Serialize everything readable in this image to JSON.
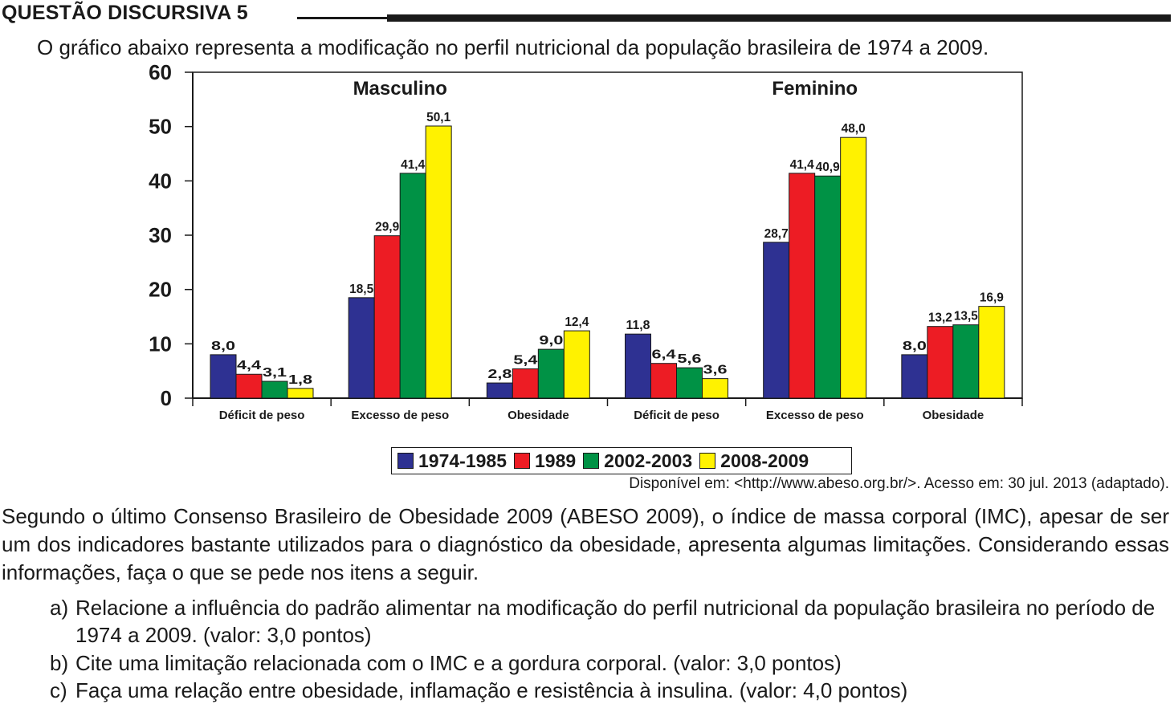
{
  "header": {
    "title": "QUESTÃO DISCURSIVA 5"
  },
  "intro": "O gráfico abaixo representa a modificação no perfil nutricional da população brasileira de 1974 a 2009.",
  "colors": {
    "series_1": "#2e3192",
    "series_2": "#ed1c24",
    "series_3": "#009245",
    "series_4": "#fff200",
    "text": "#1a1a1a"
  },
  "chart_data": {
    "type": "bar",
    "panels": [
      "Masculino",
      "Feminino"
    ],
    "categories": [
      "Déficit de peso",
      "Excesso de peso",
      "Obesidade",
      "Déficit de peso",
      "Excesso de peso",
      "Obesidade"
    ],
    "series": [
      {
        "name": "1974-1985",
        "values": [
          8.0,
          18.5,
          2.8,
          11.8,
          28.7,
          8.0
        ],
        "labels": [
          "8,0",
          "18,5",
          "2,8",
          "11,8",
          "28,7",
          "8,0"
        ]
      },
      {
        "name": "1989",
        "values": [
          4.4,
          29.9,
          5.4,
          6.4,
          41.4,
          13.2
        ],
        "labels": [
          "4,4",
          "29,9",
          "5,4",
          "6,4",
          "41,4",
          "13,2"
        ]
      },
      {
        "name": "2002-2003",
        "values": [
          3.1,
          41.4,
          9.0,
          5.6,
          40.9,
          13.5
        ],
        "labels": [
          "3,1",
          "41,4",
          "9,0",
          "5,6",
          "40,9",
          "13,5"
        ]
      },
      {
        "name": "2008-2009",
        "values": [
          1.8,
          50.1,
          12.4,
          3.6,
          48.0,
          16.9
        ],
        "labels": [
          "1,8",
          "50,1",
          "12,4",
          "3,6",
          "48,0",
          "16,9"
        ]
      }
    ],
    "y_ticks": [
      "0",
      "10",
      "20",
      "30",
      "40",
      "50",
      "60"
    ],
    "ylim": [
      0,
      60
    ],
    "grid": false,
    "legend_position": "bottom"
  },
  "source": "Disponível em: <http://www.abeso.org.br/>. Acesso em: 30 jul. 2013 (adaptado).",
  "paragraph": "Segundo o último Consenso Brasileiro de Obesidade 2009 (ABESO 2009), o índice de massa corporal (IMC), apesar de ser um dos indicadores bastante utilizados para o diagnóstico da obesidade, apresenta algumas limitações. Considerando essas informações, faça o que se pede nos itens a seguir.",
  "questions": [
    {
      "label": "a)",
      "text": "Relacione a influência do padrão alimentar na modificação do perfil nutricional da população brasileira no período de 1974 a 2009. (valor: 3,0 pontos)"
    },
    {
      "label": "b)",
      "text": "Cite uma limitação relacionada com o IMC e a gordura corporal. (valor: 3,0 pontos)"
    },
    {
      "label": "c)",
      "text": "Faça uma relação entre obesidade, inflamação e resistência à insulina. (valor: 4,0 pontos)"
    }
  ]
}
